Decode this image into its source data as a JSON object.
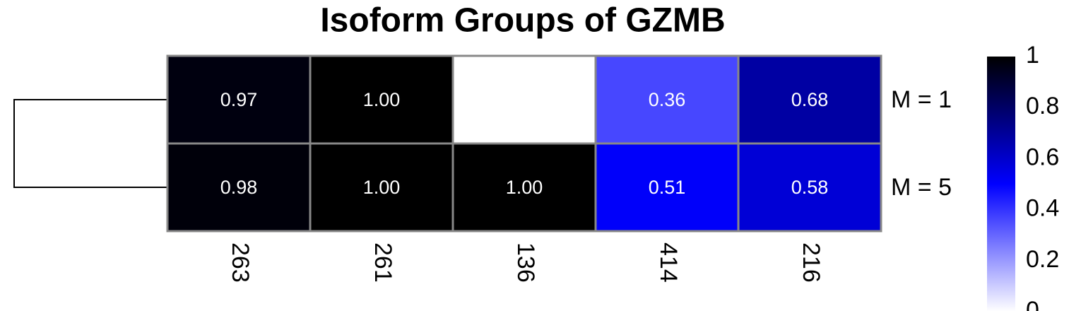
{
  "chart_data": {
    "type": "heatmap",
    "title": "Isoform Groups of GZMB",
    "columns": [
      "263",
      "261",
      "136",
      "414",
      "216"
    ],
    "rows": [
      "M = 1",
      "M = 5"
    ],
    "values": [
      [
        0.97,
        1.0,
        null,
        0.36,
        0.68
      ],
      [
        0.98,
        1.0,
        1.0,
        0.51,
        0.58
      ]
    ],
    "value_labels": [
      [
        "0.97",
        "1.00",
        null,
        "0.36",
        "0.68"
      ],
      [
        "0.98",
        "1.00",
        "1.00",
        "0.51",
        "0.58"
      ]
    ],
    "colors": [
      "#ffffff",
      "#0000ff",
      "#000000"
    ],
    "colorbar": {
      "lim": [
        0,
        1
      ],
      "ticks": [
        0,
        0.2,
        0.4,
        0.6,
        0.8,
        1
      ]
    }
  }
}
